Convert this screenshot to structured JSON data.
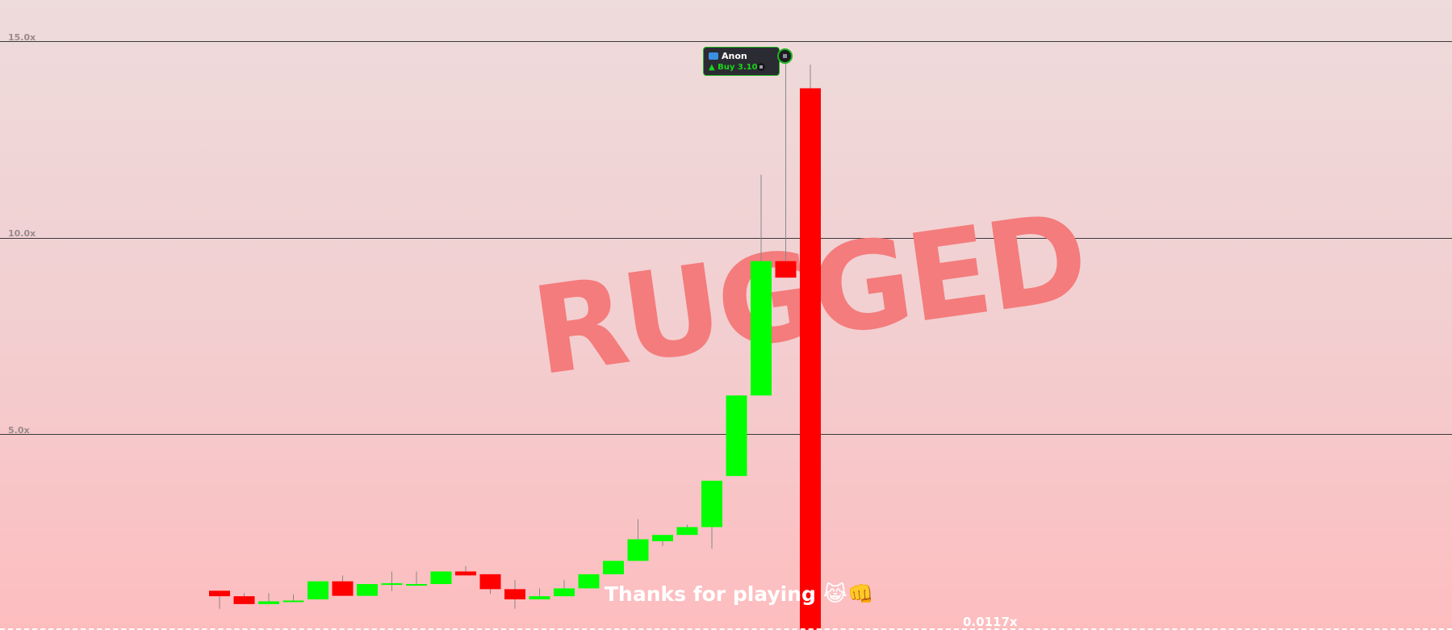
{
  "chart_data": {
    "type": "candlestick",
    "ylim": [
      0.3,
      15.0
    ],
    "y_ticks": [
      {
        "value": 5.0,
        "label": "5.0x"
      },
      {
        "value": 10.0,
        "label": "10.0x"
      },
      {
        "value": 15.0,
        "label": "15.0x"
      }
    ],
    "grid": true,
    "colors": {
      "up": "#00ff00",
      "down": "#ff0000",
      "wick": "#888888"
    },
    "candles": [
      {
        "open": 1.01,
        "close": 0.87,
        "high": 1.01,
        "low": 0.55
      },
      {
        "open": 0.87,
        "close": 0.67,
        "high": 0.95,
        "low": 0.67
      },
      {
        "open": 0.67,
        "close": 0.74,
        "high": 0.95,
        "low": 0.67
      },
      {
        "open": 0.74,
        "close": 0.76,
        "high": 0.92,
        "low": 0.74
      },
      {
        "open": 0.79,
        "close": 1.25,
        "high": 1.25,
        "low": 0.79
      },
      {
        "open": 1.25,
        "close": 0.88,
        "high": 1.4,
        "low": 0.88
      },
      {
        "open": 0.88,
        "close": 1.18,
        "high": 1.18,
        "low": 0.88
      },
      {
        "open": 1.2,
        "close": 1.2,
        "high": 1.5,
        "low": 1.0
      },
      {
        "open": 1.18,
        "close": 1.18,
        "high": 1.5,
        "low": 1.18
      },
      {
        "open": 1.18,
        "close": 1.5,
        "high": 1.5,
        "low": 1.18
      },
      {
        "open": 1.5,
        "close": 1.4,
        "high": 1.64,
        "low": 1.4
      },
      {
        "open": 1.43,
        "close": 1.05,
        "high": 1.43,
        "low": 0.93
      },
      {
        "open": 1.05,
        "close": 0.79,
        "high": 1.28,
        "low": 0.55
      },
      {
        "open": 0.79,
        "close": 0.87,
        "high": 1.07,
        "low": 0.79
      },
      {
        "open": 0.87,
        "close": 1.07,
        "high": 1.28,
        "low": 0.87
      },
      {
        "open": 1.07,
        "close": 1.43,
        "high": 1.43,
        "low": 1.07
      },
      {
        "open": 1.43,
        "close": 1.77,
        "high": 1.77,
        "low": 1.43
      },
      {
        "open": 1.77,
        "close": 2.32,
        "high": 2.83,
        "low": 1.77
      },
      {
        "open": 2.27,
        "close": 2.43,
        "high": 2.43,
        "low": 2.15
      },
      {
        "open": 2.43,
        "close": 2.63,
        "high": 2.69,
        "low": 2.43
      },
      {
        "open": 2.63,
        "close": 3.81,
        "high": 3.81,
        "low": 2.08
      },
      {
        "open": 3.93,
        "close": 5.98,
        "high": 5.98,
        "low": 3.93
      },
      {
        "open": 5.98,
        "close": 9.4,
        "high": 11.6,
        "low": 5.98
      },
      {
        "open": 9.4,
        "close": 8.98,
        "high": 14.5,
        "low": 8.98
      },
      {
        "open": 13.8,
        "close": 0.0117,
        "high": 14.4,
        "low": 0.0117
      }
    ],
    "annotations": {
      "watermark": "RUGGED",
      "message": "Thanks for playing",
      "message_emoji": "😹👊",
      "current_price": "0.0117x"
    },
    "trade_marker": {
      "user": "Anon",
      "action": "Buy 3.109",
      "candle_index": 23,
      "price": 14.4
    }
  }
}
